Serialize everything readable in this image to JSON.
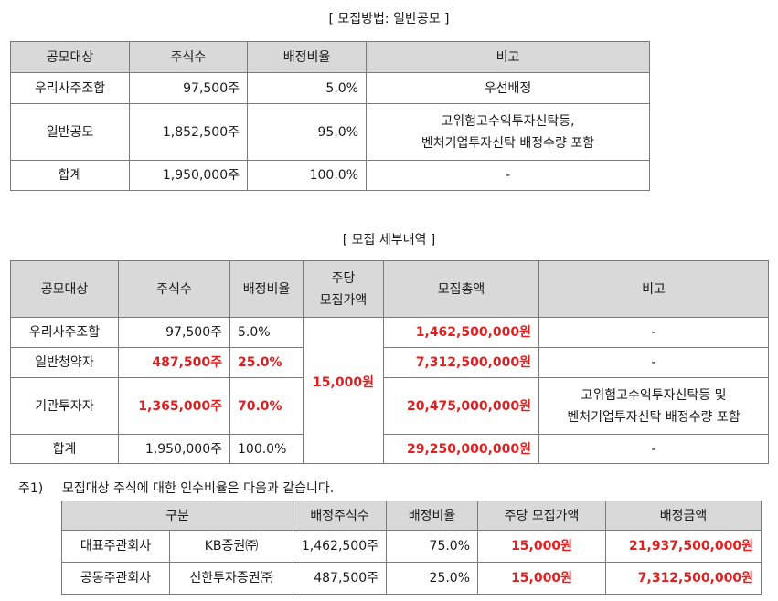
{
  "table1": {
    "title": "[ 모집방법: 일반공모 ]",
    "headers": [
      "공모대상",
      "주식수",
      "배정비율",
      "비고"
    ],
    "rows": [
      {
        "target": "우리사주조합",
        "shares": "97,500주",
        "ratio": "5.0%",
        "note": "우선배정"
      },
      {
        "target": "일반공모",
        "shares": "1,852,500주",
        "ratio": "95.0%",
        "note": "고위험고수익투자신탁등,\n벤처기업투자신탁 배정수량 포함"
      },
      {
        "target": "합계",
        "shares": "1,950,000주",
        "ratio": "100.0%",
        "note": "-"
      }
    ]
  },
  "table2": {
    "title": "[ 모집 세부내역 ]",
    "headers": [
      "공모대상",
      "주식수",
      "배정비율",
      "주당\n모집가액",
      "모집총액",
      "비고"
    ],
    "price": "15,000원",
    "rows": [
      {
        "target": "우리사주조합",
        "shares": "97,500주",
        "ratio": "5.0%",
        "total": "1,462,500,000원",
        "note": "-"
      },
      {
        "target": "일반청약자",
        "shares": "487,500주",
        "ratio": "25.0%",
        "total": "7,312,500,000원",
        "note": "-"
      },
      {
        "target": "기관투자자",
        "shares": "1,365,000주",
        "ratio": "70.0%",
        "total": "20,475,000,000원",
        "note": "고위험고수익투자신탁등 및\n벤처기업투자신탁 배정수량 포함"
      },
      {
        "target": "합계",
        "shares": "1,950,000주",
        "ratio": "100.0%",
        "total": "29,250,000,000원",
        "note": "-"
      }
    ]
  },
  "footnote": {
    "label": "주1)",
    "text": "모집대상 주식에 대한 인수비율은 다음과 같습니다."
  },
  "table3": {
    "headers": [
      "구분",
      "배정주식수",
      "배정비율",
      "주당 모집가액",
      "배정금액"
    ],
    "rows": [
      {
        "role": "대표주관회사",
        "company": "KB증권㈜",
        "shares": "1,462,500주",
        "ratio": "75.0%",
        "price": "15,000원",
        "amount": "21,937,500,000원"
      },
      {
        "role": "공동주관회사",
        "company": "신한투자증권㈜",
        "shares": "487,500주",
        "ratio": "25.0%",
        "price": "15,000원",
        "amount": "7,312,500,000원"
      }
    ]
  },
  "colors": {
    "header_bg": "#d9d9d9",
    "highlight": "#e02020",
    "border": "#7a7a7a"
  }
}
